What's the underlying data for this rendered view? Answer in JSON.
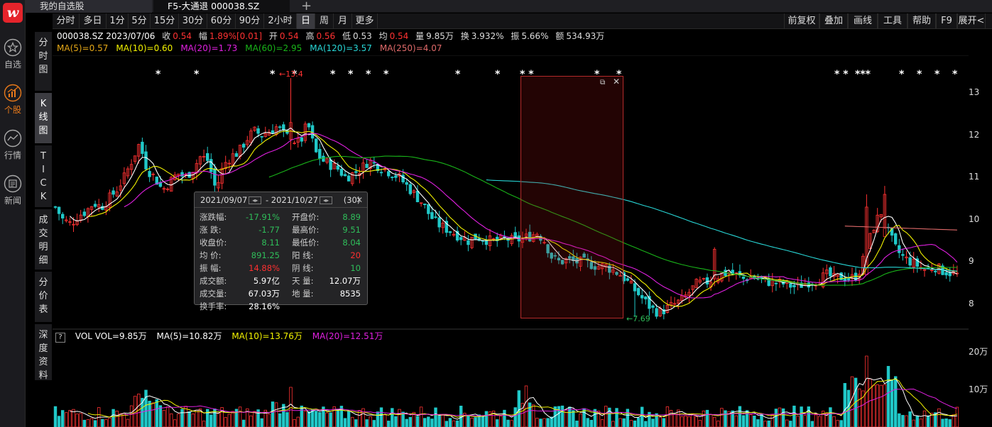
{
  "app": {
    "logo_text": "w",
    "nav": [
      {
        "label": "自选",
        "icon": "star-icon"
      },
      {
        "label": "个股",
        "icon": "stock-chart-icon",
        "active": true
      },
      {
        "label": "行情",
        "icon": "market-trend-icon"
      },
      {
        "label": "新闻",
        "icon": "news-icon"
      }
    ]
  },
  "tabs": {
    "watchlist": "我的自选股",
    "stock": "F5-大通退 000038.SZ",
    "add": "+"
  },
  "toolbar": {
    "left": [
      "分时",
      "多日",
      "1分",
      "5分",
      "15分",
      "30分",
      "60分",
      "90分",
      "2小时",
      "日",
      "周",
      "月",
      "更多"
    ],
    "active": "日",
    "right": [
      "前复权",
      "叠加",
      "画线",
      "工具",
      "帮助",
      "F9",
      "展开<"
    ]
  },
  "side_tabs": [
    "分时图",
    "K线图",
    "TICK",
    "成交明细",
    "分价表",
    "深度资料"
  ],
  "side_active": "K线图",
  "quote": {
    "code_date": "000038.SZ 2023/07/06",
    "close_label": "收",
    "close": "0.54",
    "change_label": "幅",
    "change": "1.89%[0.01]",
    "open_label": "开",
    "open": "0.54",
    "high_label": "高",
    "high": "0.56",
    "low_label": "低",
    "low": "0.53",
    "avg_label": "均",
    "avg": "0.54",
    "vol_label": "量",
    "vol": "9.85万",
    "turnover_label": "换",
    "turnover": "3.932%",
    "amp_label": "振",
    "amp": "5.66%",
    "amount_label": "额",
    "amount": "534.93万"
  },
  "ma": [
    {
      "text": "MA(5)=0.57",
      "color": "#e6a817"
    },
    {
      "text": "MA(10)=0.60",
      "color": "#f2f200"
    },
    {
      "text": "MA(20)=1.73",
      "color": "#e020e0"
    },
    {
      "text": "MA(60)=2.95",
      "color": "#19b419"
    },
    {
      "text": "MA(120)=3.57",
      "color": "#28d7d7"
    },
    {
      "text": "MA(250)=4.07",
      "color": "#e06a6a"
    }
  ],
  "vol_ma": {
    "help": "?",
    "vol": "VOL  VOL=9.85万",
    "ma5": "MA(5)=10.82万",
    "ma10": "MA(10)=13.76万",
    "ma20": "MA(20)=12.51万"
  },
  "y_axis": [
    "13",
    "12",
    "11",
    "10",
    "9",
    "8"
  ],
  "vol_axis": [
    "20万",
    "10万"
  ],
  "annotations": {
    "high_mark": "←13.4",
    "low_mark": "←7.69"
  },
  "stars": [
    "*",
    "*",
    "*",
    "*",
    "*",
    "*",
    "*",
    "*",
    "*",
    "*",
    "* *",
    "*",
    "*",
    "* *",
    "***",
    "*",
    "*",
    "*",
    "*"
  ],
  "popup": {
    "start": "2021/09/07",
    "end": "2021/10/27",
    "count": "(30)",
    "close": "✕",
    "left_rows": [
      {
        "label": "涨跌幅:",
        "value": "-17.91%",
        "color": "#2fbf5a"
      },
      {
        "label": "涨    跌:",
        "value": "-1.77",
        "color": "#2fbf5a"
      },
      {
        "label": "收盘价:",
        "value": "8.11",
        "color": "#2fbf5a"
      },
      {
        "label": "均    价:",
        "value": "891.25",
        "color": "#2fbf5a"
      },
      {
        "label": "振    幅:",
        "value": "14.88%",
        "color": "#ff3030"
      },
      {
        "label": "成交额:",
        "value": "5.97亿",
        "color": "#ffffff"
      },
      {
        "label": "成交量:",
        "value": "67.03万",
        "color": "#ffffff"
      },
      {
        "label": "换手率:",
        "value": "28.16%",
        "color": "#ffffff"
      }
    ],
    "right_rows": [
      {
        "label": "开盘价:",
        "value": "8.89",
        "color": "#2fbf5a"
      },
      {
        "label": "最高价:",
        "value": "9.51",
        "color": "#2fbf5a"
      },
      {
        "label": "最低价:",
        "value": "8.04",
        "color": "#2fbf5a"
      },
      {
        "label": "阳    线:",
        "value": "20",
        "color": "#ff3030"
      },
      {
        "label": "阴    线:",
        "value": "10",
        "color": "#2fbf5a"
      },
      {
        "label": "天    量:",
        "value": "12.07万",
        "color": "#ffffff"
      },
      {
        "label": "地    量:",
        "value": "8535",
        "color": "#ffffff"
      }
    ]
  },
  "selection": {
    "restore": "⧉",
    "close": "✕"
  },
  "colors": {
    "up": "#ff3232",
    "down": "#20c8c8",
    "ma5": "#ffffff",
    "ma10": "#f2f200",
    "ma20": "#e020e0",
    "ma60": "#19b419",
    "ma120": "#28d7d7",
    "ma250": "#e06a6a"
  },
  "chart_data": {
    "type": "candlestick",
    "y_range": [
      7.6,
      13.4
    ],
    "close_path": [
      10.3,
      10.0,
      9.9,
      10.1,
      10.2,
      10.4,
      10.3,
      10.5,
      10.7,
      11.0,
      11.4,
      11.8,
      11.2,
      11.0,
      10.7,
      10.9,
      11.1,
      11.0,
      11.2,
      11.5,
      11.4,
      10.7,
      11.3,
      11.5,
      11.6,
      11.9,
      12.1,
      12.0,
      12.1,
      12.2,
      12.0,
      11.9,
      11.8,
      12.3,
      11.6,
      11.4,
      11.3,
      11.2,
      11.0,
      11.1,
      11.2,
      11.4,
      11.3,
      11.2,
      11.1,
      11.0,
      10.8,
      10.6,
      10.4,
      10.1,
      9.9,
      9.8,
      9.7,
      9.6,
      9.5,
      9.6,
      9.55,
      9.5,
      9.5,
      9.55,
      9.5,
      9.55,
      9.6,
      9.7,
      9.5,
      9.1,
      9.0,
      9.05,
      9.0,
      9.0,
      8.95,
      8.9,
      8.9,
      8.8,
      8.7,
      8.5,
      8.3,
      8.1,
      7.9,
      7.8,
      7.9,
      8.0,
      8.1,
      8.3,
      8.5,
      8.5,
      8.6,
      8.7,
      8.75,
      8.7,
      8.6,
      8.65,
      8.6,
      8.55,
      8.5,
      8.5,
      8.45,
      8.4,
      8.5,
      8.55,
      8.6,
      8.7,
      8.6,
      8.65,
      8.6,
      8.7,
      9.2,
      9.8,
      10.2,
      9.7,
      9.3,
      9.1,
      9.0,
      8.9,
      8.8,
      8.9,
      8.8,
      8.75,
      8.7
    ]
  }
}
